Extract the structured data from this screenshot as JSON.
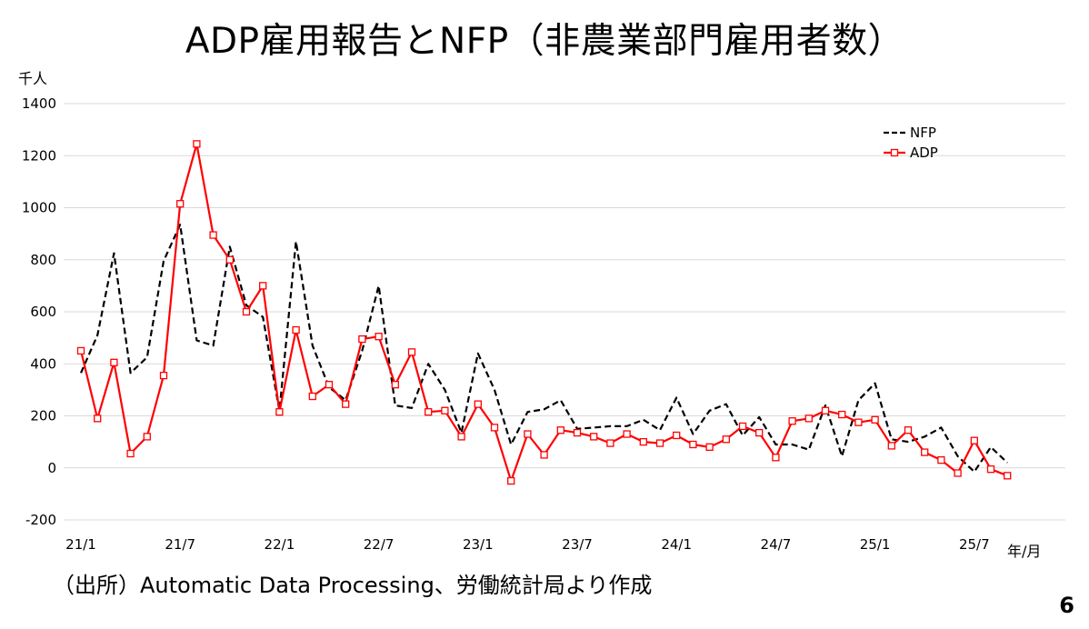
{
  "slide": {
    "title": "ADP雇用報告とNFP（非農業部門雇用者数）",
    "source": "（出所）Automatic Data Processing、労働統計局より作成",
    "page_number": "6"
  },
  "chart_data": {
    "type": "line",
    "title": "ADP雇用報告とNFP（非農業部門雇用者数）",
    "y_unit_label": "千人",
    "x_unit_label": "年/月",
    "ylim": [
      -200,
      1400
    ],
    "yticks": [
      -200,
      0,
      200,
      400,
      600,
      800,
      1000,
      1200,
      1400
    ],
    "grid": true,
    "legend_position": "top-right",
    "x": [
      "21/1",
      "21/2",
      "21/3",
      "21/4",
      "21/5",
      "21/6",
      "21/7",
      "21/8",
      "21/9",
      "21/10",
      "21/11",
      "21/12",
      "22/1",
      "22/2",
      "22/3",
      "22/4",
      "22/5",
      "22/6",
      "22/7",
      "22/8",
      "22/9",
      "22/10",
      "22/11",
      "22/12",
      "23/1",
      "23/2",
      "23/3",
      "23/4",
      "23/5",
      "23/6",
      "23/7",
      "23/8",
      "23/9",
      "23/10",
      "23/11",
      "23/12",
      "24/1",
      "24/2",
      "24/3",
      "24/4",
      "24/5",
      "24/6",
      "24/7",
      "24/8",
      "24/9",
      "24/10",
      "24/11",
      "24/12",
      "25/1",
      "25/2",
      "25/3",
      "25/4",
      "25/5",
      "25/6",
      "25/7",
      "25/8",
      "25/9"
    ],
    "xtick_labels": [
      "21/1",
      "21/7",
      "22/1",
      "22/7",
      "23/1",
      "23/7",
      "24/1",
      "24/7",
      "25/1",
      "25/7"
    ],
    "xtick_indices": [
      0,
      6,
      12,
      18,
      24,
      30,
      36,
      42,
      48,
      54
    ],
    "series": [
      {
        "name": "NFP",
        "color": "#000000",
        "dash": "dashed",
        "marker": "none",
        "values": [
          365,
          510,
          825,
          365,
          425,
          795,
          935,
          490,
          470,
          850,
          625,
          580,
          220,
          870,
          470,
          310,
          260,
          450,
          700,
          240,
          230,
          400,
          300,
          135,
          440,
          300,
          90,
          215,
          225,
          260,
          150,
          155,
          160,
          160,
          185,
          145,
          270,
          130,
          220,
          245,
          125,
          195,
          90,
          90,
          70,
          240,
          45,
          260,
          325,
          110,
          100,
          120,
          155,
          45,
          -15,
          80,
          20
        ]
      },
      {
        "name": "ADP",
        "color": "#ff0000",
        "dash": "solid",
        "marker": "square",
        "values": [
          450,
          190,
          405,
          55,
          120,
          355,
          1015,
          1245,
          895,
          800,
          600,
          700,
          215,
          530,
          275,
          320,
          245,
          495,
          505,
          320,
          445,
          215,
          220,
          120,
          245,
          155,
          -50,
          130,
          50,
          145,
          135,
          120,
          95,
          130,
          100,
          95,
          125,
          90,
          80,
          110,
          160,
          135,
          40,
          180,
          190,
          220,
          205,
          175,
          185,
          85,
          145,
          60,
          30,
          -20,
          105,
          -5,
          -30
        ]
      }
    ]
  }
}
